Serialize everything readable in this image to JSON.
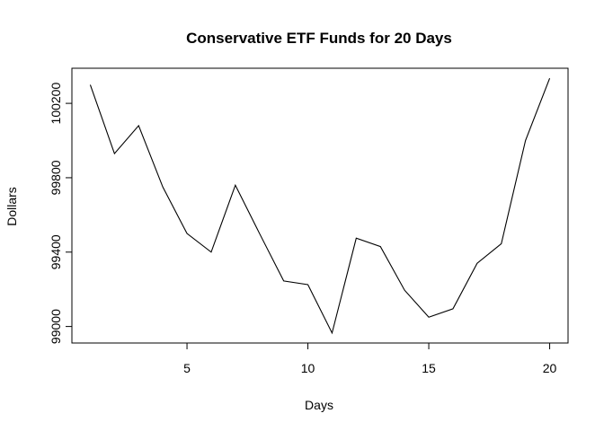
{
  "chart_data": {
    "type": "line",
    "title": "Conservative ETF Funds for 20 Days",
    "xlabel": "Days",
    "ylabel": "Dollars",
    "x": [
      1,
      2,
      3,
      4,
      5,
      6,
      7,
      8,
      9,
      10,
      11,
      12,
      13,
      14,
      15,
      16,
      17,
      18,
      19,
      20
    ],
    "series": [
      {
        "values": [
          100300,
          99930,
          100080,
          99750,
          99500,
          99400,
          99760,
          99500,
          99245,
          99225,
          98965,
          99475,
          99430,
          99195,
          99050,
          99095,
          99340,
          99445,
          100000,
          100335
        ]
      }
    ],
    "xticks": [
      5,
      10,
      15,
      20
    ],
    "yticks": [
      99000,
      99400,
      99800,
      100200
    ],
    "xlim": [
      0.24,
      20.76
    ],
    "ylim": [
      98911.2,
      100388.8
    ],
    "line_color": "#000000",
    "grid": false,
    "legend": "none"
  }
}
